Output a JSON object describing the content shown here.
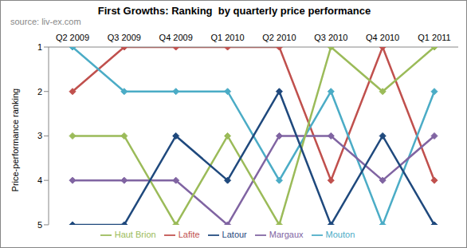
{
  "chart_data": {
    "type": "line",
    "title": "First Growths: Ranking  by quarterly price performance",
    "subtitle": "source: liv-ex.com",
    "y_label": "Price-performance ranking",
    "categories": [
      "Q2 2009",
      "Q3 2009",
      "Q4 2009",
      "Q1 2010",
      "Q2 2010",
      "Q3 2010",
      "Q4 2010",
      "Q1 2011"
    ],
    "series": [
      {
        "name": "Lafite",
        "color": "#c0504d",
        "values": [
          2,
          1,
          1,
          1,
          1,
          4,
          1,
          4
        ]
      },
      {
        "name": "Mouton",
        "color": "#4bacc6",
        "values": [
          1,
          2,
          2,
          2,
          4,
          2,
          5,
          2
        ]
      },
      {
        "name": "Margaux",
        "color": "#8064a2",
        "values": [
          4,
          4,
          4,
          5,
          3,
          3,
          4,
          3
        ]
      },
      {
        "name": "Haut Brion",
        "color": "#9bbb59",
        "values": [
          3,
          3,
          5,
          3,
          5,
          1,
          2,
          1
        ]
      },
      {
        "name": "Latour",
        "color": "#1f497d",
        "values": [
          5,
          5,
          3,
          4,
          2,
          5,
          3,
          5
        ]
      }
    ],
    "ylim": [
      5,
      1
    ],
    "yticks": [
      1,
      2,
      3,
      4,
      5
    ],
    "grid": false,
    "legend": "bottom",
    "marker": "diamond",
    "line_style": "solid"
  }
}
